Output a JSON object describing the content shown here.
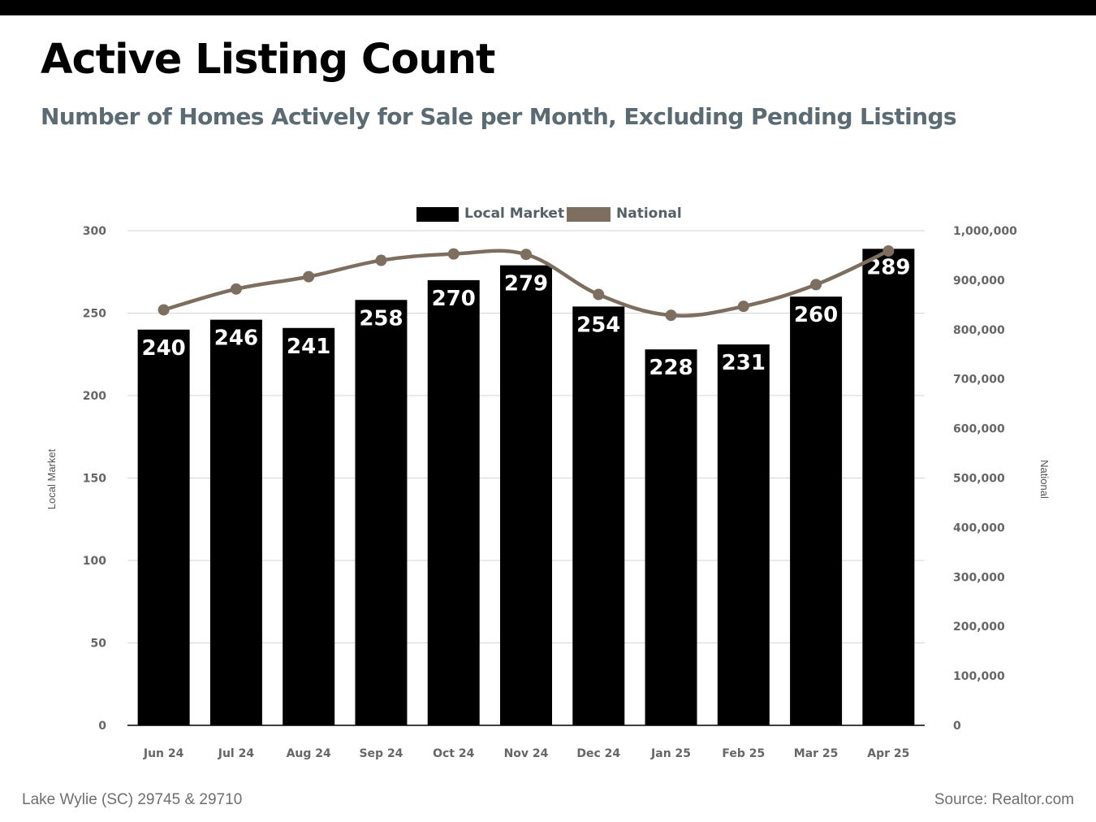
{
  "header": {
    "title": "Active Listing Count",
    "subtitle": "Number of Homes Actively for Sale per Month, Excluding Pending Listings"
  },
  "footer": {
    "location": "Lake Wylie (SC) 29745 & 29710",
    "source": "Source: Realtor.com"
  },
  "chart_data": {
    "type": "bar",
    "categories": [
      "Jun 24",
      "Jul 24",
      "Aug 24",
      "Sep 24",
      "Oct 24",
      "Nov 24",
      "Dec 24",
      "Jan 25",
      "Feb 25",
      "Mar 25",
      "Apr 25"
    ],
    "series": [
      {
        "name": "Local Market",
        "type": "bar",
        "axis": "left",
        "color": "#000000",
        "values": [
          240,
          246,
          241,
          258,
          270,
          279,
          254,
          228,
          231,
          260,
          289
        ]
      },
      {
        "name": "National",
        "type": "line",
        "axis": "right",
        "color": "#7d6e60",
        "values": [
          840000,
          882000,
          907000,
          940000,
          953000,
          952000,
          871000,
          829000,
          847000,
          891000,
          959000
        ]
      }
    ],
    "ylabel": "Local Market",
    "y2label": "National",
    "ylim": [
      0,
      300
    ],
    "y2lim": [
      0,
      1000000
    ],
    "yticks": [
      "0",
      "50",
      "100",
      "150",
      "200",
      "250",
      "300"
    ],
    "y2ticks": [
      "0",
      "100,000",
      "200,000",
      "300,000",
      "400,000",
      "500,000",
      "600,000",
      "700,000",
      "800,000",
      "900,000",
      "1,000,000"
    ],
    "grid": true,
    "legend": "top-center",
    "data_labels": true
  }
}
